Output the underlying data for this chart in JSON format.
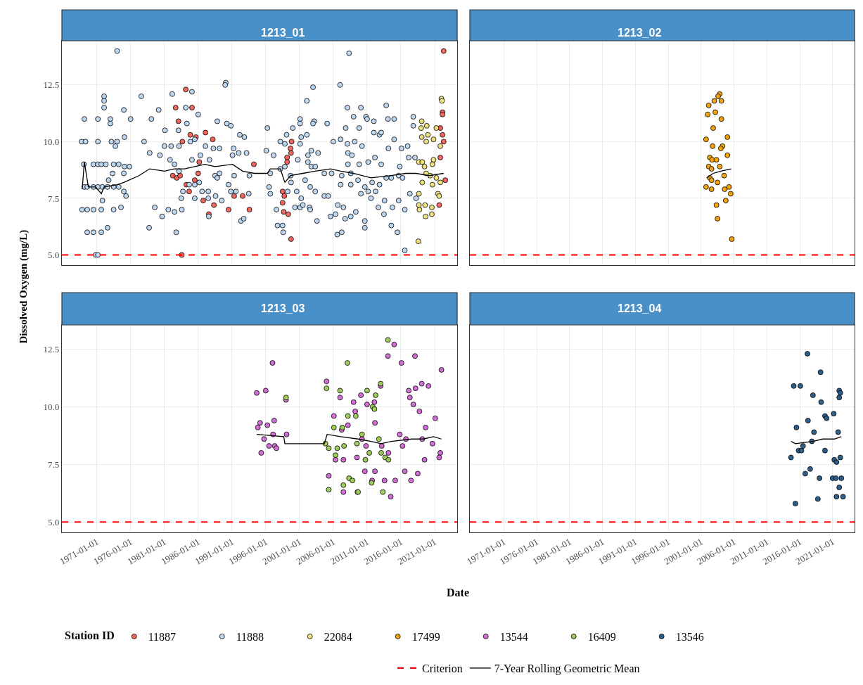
{
  "chart_data": [
    {
      "type": "scatter",
      "title": "1213_01",
      "ylabel": "Dissolved Oxygen (mg/L)",
      "legend_title": "Station ID",
      "legend": "bottom",
      "grid": true,
      "marker": "circle",
      "tick_labels": "y",
      "xlim": [
        "1965-11",
        "2024-05"
      ],
      "ylim": [
        4.55,
        14.45
      ],
      "xticks": [
        "1971-01-01",
        "1976-01-01",
        "1981-01-01",
        "1986-01-01",
        "1991-01-01",
        "1996-01-01",
        "2001-01-01",
        "2006-01-01",
        "2011-01-01",
        "2016-01-01",
        "2021-01-01"
      ],
      "yticks": [
        {
          "value": 5,
          "label": "5.0"
        },
        {
          "value": 7.5,
          "label": "7.5"
        },
        {
          "value": 10,
          "label": "10.0"
        },
        {
          "value": 12.5,
          "label": "12.5"
        }
      ],
      "ref_lines": [
        {
          "axis": "y",
          "value": 5,
          "label": "Criterion",
          "color": "#ff0000",
          "line_style": "dashed"
        }
      ],
      "series": [
        {
          "name": "11887",
          "color": "#f0675f",
          "x": [
            "1984-03",
            "1982-09",
            "1985-02",
            "1983-02",
            "1984-11",
            "1985-09",
            "1987-02",
            "1988-03",
            "1983-09",
            "1986-03",
            "1982-04",
            "1982-11",
            "1983-05",
            "1986-01",
            "1985-07",
            "1984-04",
            "1984-09",
            "1986-10",
            "1988-05",
            "1990-07",
            "1991-05",
            "1992-08",
            "1993-08",
            "1987-08",
            "1983-08",
            "1994-04",
            "1999-11",
            "1999-09",
            "1999-10",
            "1999-03",
            "1999-03",
            "1998-07",
            "1998-10",
            "1998-07",
            "1998-09",
            "1999-05",
            "1999-10",
            "2022-05",
            "2022-03",
            "2022-03",
            "2021-11",
            "2022-03",
            "2022-05",
            "2021-11",
            "2022-08",
            "2021-09"
          ],
          "values": [
            12.3,
            11.5,
            11.5,
            10.9,
            10.3,
            10.2,
            10.4,
            10.1,
            10.0,
            9.1,
            8.5,
            8.4,
            8.5,
            8.6,
            8.3,
            8.1,
            7.8,
            7.4,
            7.2,
            7.0,
            7.6,
            7.6,
            7.0,
            6.8,
            5.0,
            9.0,
            10.0,
            9.7,
            9.5,
            9.3,
            9.1,
            7.8,
            7.6,
            7.3,
            6.9,
            6.8,
            5.7,
            14.0,
            11.3,
            11.2,
            10.6,
            10.3,
            10.0,
            9.3,
            8.3,
            7.2
          ]
        },
        {
          "name": "11888",
          "color": "#bdd7f0",
          "x": [
            "1974-01",
            "1969-03",
            "1971-03",
            "1973-01",
            "1973-01",
            "1972-02",
            "1972-02",
            "1972-02",
            "1975-01",
            "1976-01",
            "1968-10",
            "1969-05",
            "1971-03",
            "1973-03",
            "1974-01",
            "1973-10",
            "1975-02",
            "1969-02",
            "1970-07",
            "1971-03",
            "1971-09",
            "1972-05",
            "1973-07",
            "1974-04",
            "1975-02",
            "1975-11",
            "1973-05",
            "1975-01",
            "1972-10",
            "1969-03",
            "1969-08",
            "1970-07",
            "1971-03",
            "1971-11",
            "1972-08",
            "1973-07",
            "1974-04",
            "1971-11",
            "1975-01",
            "1975-05",
            "1968-11",
            "1969-08",
            "1970-07",
            "1971-09",
            "1973-07",
            "1974-08",
            "1969-08",
            "1970-07",
            "1971-09",
            "1972-08",
            "1970-11",
            "1971-03",
            "1977-08",
            "1980-03",
            "1979-02",
            "1978-01",
            "1978-11",
            "1980-05",
            "1981-02",
            "1982-03",
            "1981-01",
            "1982-01",
            "1983-03",
            "1983-02",
            "1984-05",
            "1985-02",
            "1984-03",
            "1986-01",
            "1981-11",
            "1982-07",
            "1983-03",
            "1984-11",
            "1985-07",
            "1985-02",
            "1986-05",
            "1987-09",
            "1987-02",
            "1988-04",
            "1989-03",
            "1988-11",
            "1990-04",
            "1990-11",
            "1990-02",
            "1990-01",
            "1992-03",
            "1992-11",
            "1991-04",
            "1991-02",
            "1992-01",
            "1993-03",
            "1991-05",
            "1988-07",
            "1988-11",
            "1989-03",
            "1986-03",
            "1983-10",
            "1984-09",
            "1985-07",
            "1986-08",
            "1987-07",
            "1988-08",
            "1989-07",
            "1990-07",
            "1990-11",
            "1991-08",
            "1993-07",
            "1993-08",
            "1985-07",
            "1987-07",
            "1983-07",
            "1982-07",
            "1983-08",
            "1981-08",
            "1980-09",
            "1979-08",
            "1978-10",
            "1982-10",
            "1987-08",
            "1992-05",
            "1992-10",
            "1996-04",
            "1996-02",
            "1997-03",
            "1996-09",
            "1996-07",
            "1996-09",
            "1997-08",
            "1997-10",
            "1998-07",
            "1998-08",
            "1998-03",
            "1998-11",
            "1999-02",
            "1998-03",
            "1998-11",
            "1999-09",
            "1999-10",
            "1999-04",
            "2000-05",
            "2001-02",
            "2001-07",
            "2002-07",
            "2002-08",
            "2000-10",
            "2000-01",
            "2001-02",
            "2001-02",
            "2002-02",
            "2003-01",
            "2003-03",
            "2003-01",
            "2001-04",
            "2001-02",
            "2002-02",
            "2002-04",
            "2002-04",
            "2002-10",
            "2003-05",
            "2003-10",
            "2002-10",
            "2001-11",
            "2002-08",
            "2003-05",
            "2000-08",
            "2001-04",
            "2004-09",
            "2005-04",
            "2003-08",
            "2005-02",
            "2006-01",
            "2007-02",
            "2008-02",
            "2009-03",
            "2007-01",
            "2008-05",
            "2008-02",
            "2010-02",
            "2009-01",
            "2010-11",
            "2011-01",
            "2007-11",
            "2009-11",
            "2012-01",
            "2013-11",
            "2014-02",
            "2015-01",
            "2008-03",
            "2008-10",
            "2010-04",
            "2012-01",
            "2012-11",
            "2013-02",
            "2008-03",
            "2009-11",
            "2011-03",
            "2012-03",
            "2013-02",
            "2015-01",
            "2014-03",
            "2016-02",
            "2004-09",
            "2005-10",
            "2007-04",
            "2008-08",
            "2007-02",
            "2008-08",
            "2009-09",
            "2010-09",
            "2011-10",
            "2012-11",
            "2014-08",
            "2015-09",
            "2016-04",
            "2005-08",
            "2006-05",
            "2006-09",
            "2007-07",
            "2007-10",
            "2008-08",
            "2009-05",
            "2006-08",
            "2007-04",
            "2010-09",
            "2010-09",
            "2011-08",
            "2012-09",
            "2013-07",
            "2013-08",
            "2014-08",
            "2015-07",
            "2010-02",
            "2011-03",
            "2012-04",
            "2015-09",
            "2014-10",
            "2016-08",
            "2016-08",
            "2017-03",
            "2018-02",
            "2017-11",
            "2017-01",
            "2015-11",
            "2017-11",
            "2017-05",
            "2018-04",
            "2013-11"
          ],
          "values": [
            14.0,
            11.0,
            11.0,
            11.0,
            10.8,
            12.0,
            11.8,
            11.5,
            11.4,
            11.0,
            10.0,
            10.0,
            10.0,
            10.0,
            10.0,
            9.8,
            10.2,
            9.0,
            9.0,
            9.0,
            9.0,
            9.0,
            9.0,
            9.0,
            8.9,
            8.9,
            8.6,
            8.6,
            8.3,
            8.0,
            8.0,
            8.0,
            8.0,
            8.0,
            8.0,
            8.0,
            8.0,
            7.4,
            7.8,
            7.6,
            7.0,
            7.0,
            7.0,
            7.0,
            7.0,
            7.1,
            6.0,
            6.0,
            6.0,
            6.2,
            5.0,
            5.0,
            12.0,
            11.4,
            11.0,
            10.0,
            9.5,
            9.4,
            10.5,
            12.1,
            9.8,
            9.8,
            9.8,
            10.5,
            10.8,
            12.2,
            11.5,
            11.2,
            9.2,
            9.0,
            8.7,
            10.0,
            10.1,
            9.2,
            9.4,
            9.2,
            9.8,
            9.7,
            9.7,
            10.9,
            10.8,
            10.7,
            12.6,
            12.5,
            10.3,
            10.2,
            9.7,
            9.4,
            9.5,
            9.5,
            8.5,
            8.5,
            8.4,
            8.6,
            8.2,
            7.8,
            8.1,
            8.1,
            7.8,
            7.8,
            7.6,
            7.4,
            8.1,
            7.8,
            7.8,
            7.7,
            8.5,
            7.5,
            7.5,
            7.5,
            6.9,
            7.0,
            7.0,
            6.7,
            7.1,
            6.2,
            6.0,
            6.7,
            6.5,
            6.6,
            10.6,
            9.6,
            9.4,
            8.6,
            8.0,
            7.7,
            7.0,
            6.3,
            6.3,
            6.0,
            10.0,
            9.9,
            10.3,
            8.8,
            8.9,
            8.5,
            8.2,
            7.8,
            7.1,
            7.1,
            7.2,
            7.1,
            7.0,
            9.2,
            10.6,
            11.0,
            10.8,
            11.8,
            12.4,
            10.9,
            10.8,
            10.2,
            9.9,
            10.3,
            9.4,
            9.1,
            8.9,
            8.9,
            9.5,
            9.6,
            8.3,
            8.0,
            7.8,
            7.8,
            7.5,
            7.6,
            7.6,
            6.5,
            10.8,
            10.0,
            10.1,
            9.9,
            10.0,
            12.5,
            13.9,
            11.5,
            11.5,
            11.1,
            11.1,
            11.0,
            10.6,
            10.6,
            10.9,
            11.6,
            11.0,
            11.0,
            9.5,
            9.4,
            9.8,
            10.4,
            10.3,
            10.4,
            9.0,
            9.0,
            9.1,
            9.3,
            9.0,
            10.1,
            9.7,
            9.7,
            8.6,
            8.6,
            8.5,
            8.6,
            8.1,
            8.1,
            8.3,
            8.0,
            8.2,
            8.1,
            8.4,
            8.5,
            8.4,
            6.7,
            6.8,
            7.2,
            7.1,
            6.6,
            6.7,
            6.9,
            5.9,
            6.0,
            6.5,
            6.2,
            7.5,
            7.1,
            6.8,
            7.4,
            6.3,
            6.0,
            7.7,
            7.8,
            7.8,
            7.4,
            7.1,
            7.0,
            5.2,
            9.3,
            9.3,
            11.1,
            9.8,
            8.9,
            10.7,
            7.7,
            7.5,
            8.4
          ]
        },
        {
          "name": "22084",
          "color": "#ede07f",
          "x": [
            "2022-01",
            "2022-02",
            "2019-02",
            "2019-11",
            "2019-01",
            "2020-01",
            "2019-02",
            "2019-10",
            "2020-11",
            "2021-04",
            "2021-11",
            "2020-11",
            "2020-09",
            "2018-09",
            "2019-03",
            "2019-07",
            "2019-10",
            "2020-05",
            "2021-04",
            "2019-03",
            "2020-09",
            "2021-11",
            "2018-09",
            "2021-07",
            "2021-09",
            "2018-09",
            "2019-08",
            "2020-08",
            "2018-10",
            "2019-09",
            "2020-08",
            "2018-08"
          ],
          "values": [
            11.9,
            11.8,
            10.9,
            10.7,
            10.6,
            10.3,
            10.2,
            10.0,
            10.1,
            10.6,
            9.8,
            9.2,
            9.0,
            9.1,
            9.1,
            8.9,
            8.6,
            8.5,
            8.4,
            8.2,
            8.1,
            8.2,
            7.7,
            7.7,
            7.6,
            7.2,
            7.2,
            7.1,
            7.0,
            6.7,
            6.8,
            5.6
          ]
        },
        {
          "name": "7-Year Rolling Geometric Mean",
          "type": "line",
          "line_style": "solid",
          "marker": "none",
          "color": "#000000",
          "x": [
            "1968-11",
            "1969-03",
            "1969-10",
            "1970-11",
            "1971-09",
            "1972-02",
            "1974-01",
            "1975-01",
            "1977-04",
            "1978-11",
            "1981-01",
            "1982-07",
            "1984-01",
            "1985-07",
            "1987-01",
            "1988-07",
            "1991-02",
            "1992-08",
            "1994-05",
            "1996-04",
            "1996-09",
            "1998-03",
            "1998-11",
            "1999-09",
            "2001-07",
            "2003-05",
            "2005-08",
            "2007-02",
            "2009-01",
            "2011-08",
            "2014-08",
            "2016-10",
            "2018-04",
            "2020-03",
            "2022-05"
          ],
          "values": [
            7.9,
            9.1,
            8.0,
            8.0,
            7.7,
            8.0,
            8.1,
            8.2,
            8.5,
            8.8,
            8.7,
            8.8,
            8.8,
            8.9,
            9.0,
            8.9,
            9.0,
            8.7,
            8.6,
            8.6,
            8.8,
            8.8,
            8.2,
            8.5,
            8.6,
            8.7,
            8.8,
            8.7,
            8.6,
            8.4,
            8.5,
            8.6,
            8.6,
            8.5,
            8.6
          ]
        }
      ]
    },
    {
      "type": "scatter",
      "title": "1213_02",
      "legend": "bottom",
      "grid": true,
      "marker": "circle",
      "tick_labels": false,
      "xlim": [
        "1965-11",
        "2024-05"
      ],
      "ylim": [
        4.55,
        14.45
      ],
      "xticks": [
        "1971-01-01",
        "1976-01-01",
        "1981-01-01",
        "1986-01-01",
        "1991-01-01",
        "1996-01-01",
        "2001-01-01",
        "2006-01-01",
        "2011-01-01",
        "2016-01-01",
        "2021-01-01"
      ],
      "yticks": [
        {
          "value": 5,
          "label": "5.0"
        },
        {
          "value": 7.5,
          "label": "7.5"
        },
        {
          "value": 10,
          "label": "10.0"
        },
        {
          "value": 12.5,
          "label": "12.5"
        }
      ],
      "ref_lines": [
        {
          "axis": "y",
          "value": 5,
          "color": "#ff0000",
          "line_style": "dashed"
        }
      ],
      "series": [
        {
          "name": "17499",
          "color": "#f2a20f",
          "x": [
            "2003-11",
            "2003-08",
            "2003-01",
            "2004-02",
            "2002-03",
            "2003-03",
            "2002-01",
            "2004-02",
            "2002-11",
            "2005-01",
            "2001-10",
            "2002-10",
            "2004-04",
            "2004-01",
            "2005-01",
            "2002-05",
            "2002-09",
            "2003-05",
            "2002-03",
            "2003-11",
            "2002-08",
            "2004-07",
            "2002-05",
            "2002-08",
            "2003-07",
            "2001-10",
            "2002-08",
            "2004-08",
            "2005-04",
            "2005-07",
            "2004-10",
            "2003-05",
            "2003-07",
            "2005-09"
          ],
          "values": [
            12.1,
            12.0,
            11.8,
            11.8,
            11.6,
            11.3,
            11.2,
            11.0,
            10.6,
            10.2,
            10.1,
            9.8,
            9.8,
            9.7,
            9.4,
            9.3,
            9.2,
            9.2,
            8.9,
            8.9,
            8.8,
            8.5,
            8.4,
            8.3,
            8.2,
            8.0,
            7.9,
            7.9,
            8.0,
            7.7,
            7.4,
            7.2,
            6.6,
            5.7
          ]
        },
        {
          "name": "7-Year Rolling Geometric Mean",
          "type": "line",
          "line_style": "solid",
          "marker": "none",
          "color": "#000000",
          "x": [
            "2001-11",
            "2002-11",
            "2004-01",
            "2005-08"
          ],
          "values": [
            8.4,
            8.6,
            8.7,
            8.8
          ]
        }
      ]
    },
    {
      "type": "scatter",
      "title": "1213_03",
      "xlabel": "Date",
      "legend": "bottom",
      "grid": true,
      "marker": "circle",
      "xlim": [
        "1965-11",
        "2024-05"
      ],
      "ylim": [
        4.55,
        13.55
      ],
      "xticks": [
        "1971-01-01",
        "1976-01-01",
        "1981-01-01",
        "1986-01-01",
        "1991-01-01",
        "1996-01-01",
        "2001-01-01",
        "2006-01-01",
        "2011-01-01",
        "2016-01-01",
        "2021-01-01"
      ],
      "yticks": [
        {
          "value": 5,
          "label": "5.0"
        },
        {
          "value": 7.5,
          "label": "7.5"
        },
        {
          "value": 10,
          "label": "10.0"
        },
        {
          "value": 12.5,
          "label": "12.5"
        }
      ],
      "ref_lines": [
        {
          "axis": "y",
          "value": 5,
          "color": "#ff0000",
          "line_style": "dashed"
        }
      ],
      "series": [
        {
          "name": "13544",
          "color": "#d26fd6",
          "x": [
            "1997-01",
            "1994-09",
            "1996-01",
            "1999-01",
            "2005-01",
            "2007-01",
            "2015-01",
            "2014-02",
            "2016-02",
            "2018-02",
            "2022-01",
            "2013-01",
            "2010-02",
            "2009-01",
            "2011-01",
            "2012-02",
            "2017-03",
            "2018-03",
            "2019-02",
            "2020-02",
            "2017-05",
            "2017-11",
            "2018-10",
            "2021-02",
            "2006-02",
            "2009-04",
            "1995-03",
            "1996-04",
            "1997-04",
            "1994-11",
            "2008-03",
            "2007-04",
            "2012-03",
            "2019-09",
            "1997-02",
            "1999-02",
            "1995-10",
            "2015-11",
            "2016-10",
            "2019-03",
            "2010-04",
            "2010-11",
            "2013-03",
            "2016-04",
            "2020-09",
            "1996-07",
            "1997-05",
            "1997-08",
            "1995-05",
            "2009-07",
            "2014-03",
            "2021-11",
            "2021-09",
            "2019-07",
            "2007-07",
            "2006-05",
            "2005-05",
            "2007-07",
            "2009-08",
            "2010-09",
            "2011-10",
            "2012-03",
            "2013-08",
            "2014-07",
            "2015-03",
            "2016-08",
            "2017-07",
            "2018-07"
          ],
          "values": [
            11.9,
            10.6,
            10.7,
            10.3,
            11.1,
            10.4,
            12.7,
            12.2,
            11.9,
            12.2,
            11.6,
            10.9,
            10.5,
            10.2,
            10.1,
            10.2,
            10.7,
            10.8,
            11.0,
            10.9,
            10.4,
            10.1,
            9.8,
            9.5,
            9.6,
            9.8,
            9.3,
            9.2,
            9.4,
            9.1,
            9.2,
            9.0,
            9.3,
            9.1,
            8.8,
            8.8,
            8.6,
            8.8,
            8.6,
            8.6,
            8.6,
            8.3,
            8.3,
            8.3,
            8.4,
            8.3,
            8.3,
            8.2,
            8.0,
            7.8,
            8.0,
            8.0,
            7.8,
            7.7,
            7.7,
            7.7,
            7.0,
            6.3,
            6.3,
            7.2,
            6.8,
            7.2,
            6.8,
            6.1,
            6.8,
            7.2,
            6.8,
            7.1
          ]
        },
        {
          "name": "16409",
          "color": "#9dcb5c",
          "x": [
            "2014-02",
            "2008-02",
            "2005-01",
            "2007-01",
            "2011-01",
            "2012-04",
            "2013-01",
            "1999-01",
            "2008-03",
            "2009-05",
            "2011-11",
            "2012-02",
            "2006-02",
            "2007-05",
            "2010-04",
            "2012-10",
            "2004-11",
            "2009-07",
            "2005-05",
            "2006-08",
            "2007-08",
            "2006-05",
            "2011-05",
            "2013-02",
            "2013-09",
            "2010-10",
            "2014-03",
            "2005-05",
            "2007-07",
            "2008-05",
            "2008-11",
            "2009-09",
            "2011-09",
            "2013-05"
          ],
          "values": [
            12.9,
            11.9,
            10.8,
            10.7,
            10.7,
            10.5,
            11.0,
            10.4,
            9.6,
            9.6,
            10.0,
            9.9,
            9.1,
            9.1,
            8.8,
            8.6,
            8.4,
            8.4,
            8.2,
            8.2,
            8.3,
            7.9,
            8.0,
            8.0,
            7.8,
            7.7,
            7.7,
            6.4,
            6.6,
            6.9,
            6.8,
            6.3,
            6.7,
            6.3
          ]
        },
        {
          "name": "7-Year Rolling Geometric Mean",
          "type": "line",
          "line_style": "solid",
          "marker": "none",
          "color": "#000000",
          "x": [
            "1994-09",
            "1998-09",
            "1998-11",
            "2004-09",
            "2005-02",
            "2007-02",
            "2009-09",
            "2011-08",
            "2013-02",
            "2014-08",
            "2017-08",
            "2019-05",
            "2020-11",
            "2022-01"
          ],
          "values": [
            8.8,
            8.7,
            8.4,
            8.4,
            8.8,
            8.7,
            8.6,
            8.5,
            8.4,
            8.5,
            8.6,
            8.6,
            8.7,
            8.6
          ]
        }
      ]
    },
    {
      "type": "scatter",
      "title": "1213_04",
      "legend": "bottom",
      "grid": true,
      "marker": "circle",
      "tick_labels": "x",
      "xlim": [
        "1965-11",
        "2024-05"
      ],
      "ylim": [
        4.55,
        13.55
      ],
      "xticks": [
        "1971-01-01",
        "1976-01-01",
        "1981-01-01",
        "1986-01-01",
        "1991-01-01",
        "1996-01-01",
        "2001-01-01",
        "2006-01-01",
        "2011-01-01",
        "2016-01-01",
        "2021-01-01"
      ],
      "yticks": [
        {
          "value": 5,
          "label": "5.0"
        },
        {
          "value": 7.5,
          "label": "7.5"
        },
        {
          "value": 10,
          "label": "10.0"
        },
        {
          "value": 12.5,
          "label": "12.5"
        }
      ],
      "ref_lines": [
        {
          "axis": "y",
          "value": 5,
          "color": "#ff0000",
          "line_style": "dashed"
        }
      ],
      "series": [
        {
          "name": "13546",
          "color": "#2f5f87",
          "x": [
            "2017-03",
            "2019-03",
            "2015-02",
            "2016-02",
            "2022-01",
            "2022-03",
            "2022-01",
            "2018-01",
            "2019-04",
            "2021-03",
            "2019-11",
            "2020-02",
            "2017-04",
            "2015-07",
            "2018-03",
            "2021-11",
            "2017-11",
            "2016-07",
            "2015-11",
            "2016-04",
            "2019-11",
            "2014-09",
            "2021-04",
            "2022-03",
            "2021-08",
            "2016-11",
            "2017-08",
            "2019-01",
            "2021-01",
            "2021-07",
            "2022-05",
            "2022-01",
            "2021-08",
            "2022-08",
            "2018-10",
            "2015-05"
          ],
          "values": [
            12.3,
            11.5,
            10.9,
            10.9,
            10.7,
            10.6,
            10.4,
            10.5,
            10.2,
            9.7,
            9.6,
            9.5,
            9.4,
            9.1,
            8.9,
            8.9,
            8.5,
            8.3,
            8.1,
            8.1,
            8.1,
            7.8,
            7.7,
            7.8,
            7.6,
            7.1,
            7.3,
            6.9,
            6.9,
            6.9,
            6.9,
            6.5,
            6.1,
            6.1,
            6.0,
            5.8
          ]
        },
        {
          "name": "7-Year Rolling Geometric Mean",
          "type": "line",
          "line_style": "solid",
          "marker": "none",
          "color": "#000000",
          "x": [
            "2014-09",
            "2015-05",
            "2018-01",
            "2019-07",
            "2020-10",
            "2021-04",
            "2022-05"
          ],
          "values": [
            8.5,
            8.4,
            8.5,
            8.6,
            8.6,
            8.6,
            8.7
          ]
        }
      ]
    }
  ]
}
